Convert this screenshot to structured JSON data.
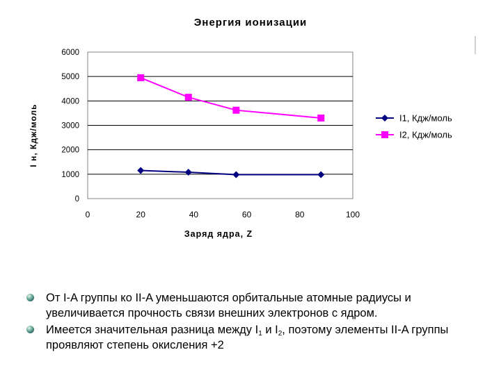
{
  "chart_data": {
    "type": "line",
    "title": "Энергия ионизации",
    "xlabel": "Заряд ядра, Z",
    "ylabel": "I н, Кдж/моль",
    "xlim": [
      0,
      100
    ],
    "ylim": [
      0,
      6000
    ],
    "xticks": [
      "0",
      "20",
      "40",
      "60",
      "80",
      "100"
    ],
    "yticks": [
      "0",
      "1000",
      "2000",
      "3000",
      "4000",
      "5000",
      "6000"
    ],
    "grid": "horizontal",
    "legend_position": "right",
    "series": [
      {
        "name": "I1, Кдж/моль",
        "color": "#000080",
        "marker": "diamond",
        "x": [
          20,
          38,
          56,
          88
        ],
        "y": [
          1150,
          1080,
          980,
          980
        ]
      },
      {
        "name": "I2, Кдж/моль",
        "color": "#ff00ff",
        "marker": "square",
        "x": [
          20,
          38,
          56,
          88
        ],
        "y": [
          4950,
          4150,
          3620,
          3300
        ]
      }
    ]
  },
  "bullets": [
    {
      "text": "От I-A группы ко II-A уменьшаются орбитальные атомные радиусы и увеличивается прочность связи внешних электронов с ядром."
    },
    {
      "parts": [
        "Имеется значительная разница между I",
        "1",
        " и I",
        "2",
        ", поэтому элементы II-A группы проявляют степень окисления +2"
      ]
    }
  ]
}
